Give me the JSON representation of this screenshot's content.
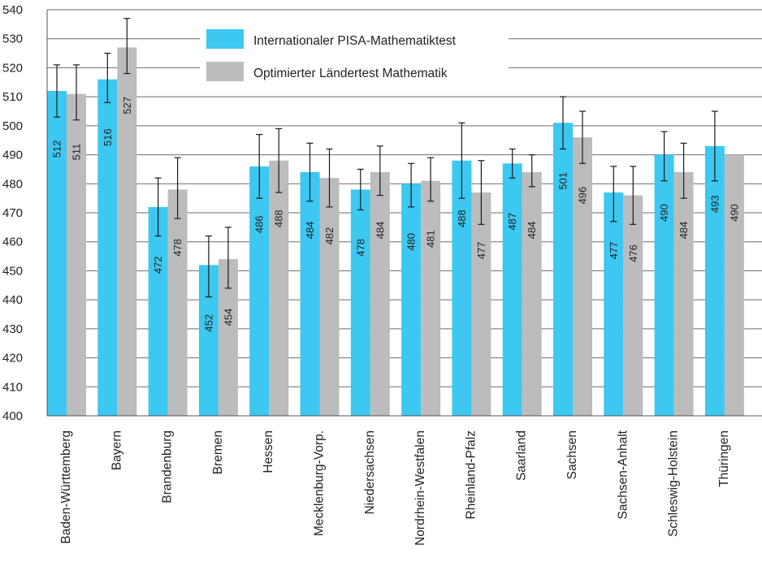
{
  "chart_data": {
    "type": "bar",
    "ylim": [
      400,
      540
    ],
    "yticks": [
      400,
      410,
      420,
      430,
      440,
      450,
      460,
      470,
      480,
      490,
      500,
      510,
      520,
      530,
      540
    ],
    "grid": true,
    "legend_position": "top",
    "categories": [
      "Baden-Württemberg",
      "Bayern",
      "Brandenburg",
      "Bremen",
      "Hessen",
      "Mecklenburg-Vorp.",
      "Niedersachsen",
      "Nordrhein-Westfalen",
      "Rheinland-Pfalz",
      "Saarland",
      "Sachsen",
      "Sachsen-Anhalt",
      "Schleswig-Holstein",
      "Thüringen"
    ],
    "series": [
      {
        "name": "Internationaler PISA-Mathematiktest",
        "color": "#3cc8f0",
        "values": [
          512,
          516,
          472,
          452,
          486,
          484,
          478,
          480,
          488,
          487,
          501,
          477,
          490,
          493
        ],
        "err_low": [
          503,
          508,
          462,
          441,
          475,
          474,
          471,
          472,
          475,
          482,
          492,
          467,
          481,
          481
        ],
        "err_high": [
          521,
          525,
          482,
          462,
          497,
          494,
          485,
          487,
          501,
          492,
          510,
          486,
          498,
          505
        ]
      },
      {
        "name": "Optimierter Ländertest Mathematik",
        "color": "#bcbcbc",
        "values": [
          511,
          527,
          478,
          454,
          488,
          482,
          484,
          481,
          477,
          484,
          496,
          476,
          484,
          490
        ],
        "err_low": [
          502,
          518,
          468,
          444,
          477,
          472,
          476,
          474,
          466,
          479,
          487,
          466,
          475,
          null
        ],
        "err_high": [
          521,
          537,
          489,
          465,
          499,
          492,
          493,
          489,
          488,
          490,
          505,
          486,
          494,
          null
        ]
      }
    ]
  }
}
